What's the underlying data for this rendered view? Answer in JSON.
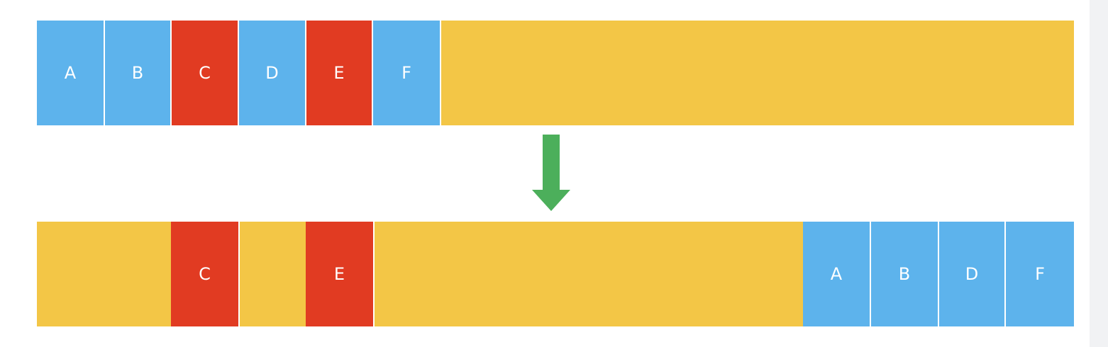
{
  "top_row": {
    "cells": [
      {
        "label": "A",
        "color": "#5db3ec"
      },
      {
        "label": "B",
        "color": "#5db3ec"
      },
      {
        "label": "C",
        "color": "#e13b22"
      },
      {
        "label": "D",
        "color": "#5db3ec"
      },
      {
        "label": "E",
        "color": "#e13b22"
      },
      {
        "label": "F",
        "color": "#5db3ec"
      }
    ],
    "free_space_color": "#f3c646"
  },
  "bottom_row": {
    "cells": [
      {
        "label": "C",
        "color": "#e13b22"
      },
      {
        "label": "E",
        "color": "#e13b22"
      },
      {
        "label": "A",
        "color": "#5db3ec"
      },
      {
        "label": "B",
        "color": "#5db3ec"
      },
      {
        "label": "D",
        "color": "#5db3ec"
      },
      {
        "label": "F",
        "color": "#5db3ec"
      }
    ],
    "free_space_color": "#f3c646"
  },
  "arrow": {
    "icon": "down-arrow-icon",
    "color": "#4caf5b"
  }
}
